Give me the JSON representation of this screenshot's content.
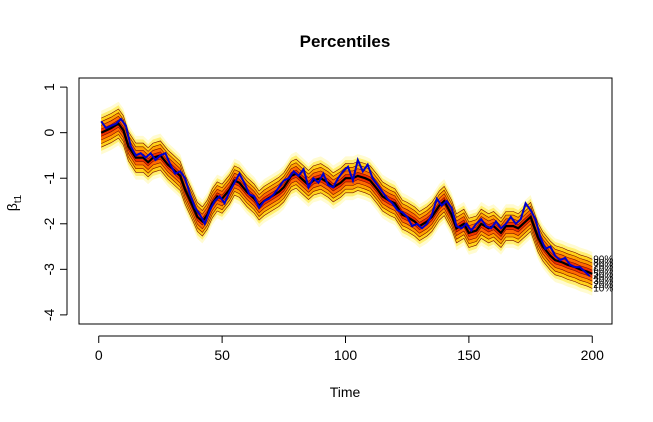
{
  "chart_data": {
    "type": "line",
    "title": "Percentiles",
    "xlabel": "Time",
    "ylabel": "β",
    "ylabel_sub": "t1",
    "xlim": [
      0,
      200
    ],
    "ylim": [
      -4,
      1
    ],
    "x_ticks": [
      0,
      50,
      100,
      150,
      200
    ],
    "y_ticks": [
      -4,
      -3,
      -2,
      -1,
      0,
      1
    ],
    "grid": false,
    "legend": "none",
    "band_colors": [
      "#fffbd0",
      "#ffef70",
      "#ffd21a",
      "#ffa200",
      "#ff6a00",
      "#ef2e00"
    ],
    "band_spreads": [
      0.48,
      0.4,
      0.32,
      0.24,
      0.16,
      0.08
    ],
    "percentile_lines_color": "#7a0e00",
    "series": [
      {
        "role": "median",
        "color": "#000000",
        "x": [
          1,
          5,
          8,
          10,
          12,
          15,
          18,
          20,
          22,
          25,
          28,
          30,
          33,
          35,
          38,
          40,
          42,
          44,
          46,
          48,
          50,
          53,
          55,
          57,
          60,
          63,
          65,
          67,
          70,
          73,
          75,
          78,
          80,
          83,
          85,
          87,
          90,
          93,
          95,
          98,
          100,
          103,
          105,
          108,
          110,
          113,
          115,
          118,
          120,
          123,
          125,
          128,
          130,
          133,
          135,
          138,
          140,
          143,
          145,
          148,
          150,
          153,
          155,
          158,
          160,
          163,
          165,
          168,
          170,
          173,
          175,
          178,
          180,
          183,
          185,
          188,
          190,
          193,
          195,
          198,
          200
        ],
        "y": [
          0.0,
          0.1,
          0.2,
          0.05,
          -0.3,
          -0.55,
          -0.55,
          -0.65,
          -0.55,
          -0.5,
          -0.7,
          -0.8,
          -0.95,
          -1.25,
          -1.6,
          -1.85,
          -1.95,
          -1.8,
          -1.55,
          -1.4,
          -1.45,
          -1.25,
          -1.05,
          -1.1,
          -1.3,
          -1.45,
          -1.6,
          -1.5,
          -1.4,
          -1.3,
          -1.2,
          -0.95,
          -0.9,
          -1.05,
          -1.15,
          -1.05,
          -1.0,
          -1.1,
          -1.2,
          -1.1,
          -1.0,
          -1.0,
          -0.95,
          -1.0,
          -1.05,
          -1.25,
          -1.4,
          -1.5,
          -1.55,
          -1.8,
          -1.85,
          -1.95,
          -2.05,
          -1.95,
          -1.85,
          -1.6,
          -1.5,
          -1.8,
          -2.1,
          -2.0,
          -2.2,
          -2.15,
          -2.0,
          -2.1,
          -2.05,
          -2.2,
          -2.05,
          -2.05,
          -2.1,
          -1.95,
          -1.85,
          -2.3,
          -2.5,
          -2.7,
          -2.8,
          -2.85,
          -2.9,
          -2.95,
          -3.0,
          -3.05,
          -3.1
        ]
      },
      {
        "role": "true",
        "color": "#0000cc",
        "x": [
          1,
          3,
          5,
          7,
          9,
          11,
          13,
          15,
          17,
          19,
          21,
          23,
          25,
          27,
          29,
          31,
          33,
          35,
          37,
          39,
          41,
          43,
          45,
          47,
          49,
          51,
          53,
          55,
          57,
          59,
          61,
          63,
          65,
          67,
          69,
          71,
          73,
          75,
          77,
          79,
          81,
          83,
          85,
          87,
          89,
          91,
          93,
          95,
          97,
          99,
          101,
          103,
          105,
          107,
          109,
          111,
          113,
          115,
          117,
          119,
          121,
          123,
          125,
          127,
          129,
          131,
          133,
          135,
          137,
          139,
          141,
          143,
          145,
          147,
          149,
          151,
          153,
          155,
          157,
          159,
          161,
          163,
          165,
          167,
          169,
          171,
          173,
          175,
          177,
          179,
          181,
          183,
          185,
          187,
          189,
          191,
          193,
          195,
          197,
          199
        ],
        "y": [
          0.25,
          0.1,
          0.15,
          0.2,
          0.3,
          0.15,
          -0.3,
          -0.5,
          -0.45,
          -0.55,
          -0.45,
          -0.6,
          -0.5,
          -0.45,
          -0.7,
          -0.9,
          -0.85,
          -1.0,
          -1.35,
          -1.65,
          -1.8,
          -2.0,
          -1.7,
          -1.5,
          -1.4,
          -1.55,
          -1.3,
          -1.1,
          -0.9,
          -1.1,
          -1.35,
          -1.4,
          -1.65,
          -1.5,
          -1.45,
          -1.35,
          -1.2,
          -1.05,
          -1.0,
          -0.85,
          -0.95,
          -0.8,
          -1.2,
          -1.0,
          -1.1,
          -0.9,
          -1.15,
          -1.2,
          -1.0,
          -0.85,
          -0.75,
          -1.05,
          -0.6,
          -0.85,
          -0.7,
          -1.0,
          -1.15,
          -1.3,
          -1.45,
          -1.55,
          -1.7,
          -1.75,
          -1.85,
          -2.05,
          -2.0,
          -2.1,
          -2.0,
          -1.8,
          -1.45,
          -1.6,
          -1.5,
          -1.65,
          -2.05,
          -2.1,
          -2.0,
          -2.15,
          -2.0,
          -1.9,
          -2.05,
          -2.1,
          -1.95,
          -2.1,
          -2.0,
          -1.85,
          -2.0,
          -1.9,
          -1.55,
          -1.7,
          -1.9,
          -2.3,
          -2.55,
          -2.5,
          -2.7,
          -2.8,
          -2.75,
          -2.9,
          -2.95,
          -2.95,
          -3.05,
          -3.15
        ]
      }
    ],
    "percentile_labels": [
      "90%",
      "80%",
      "70%",
      "60%",
      "50%",
      "40%",
      "30%",
      "20%",
      "10%"
    ]
  }
}
